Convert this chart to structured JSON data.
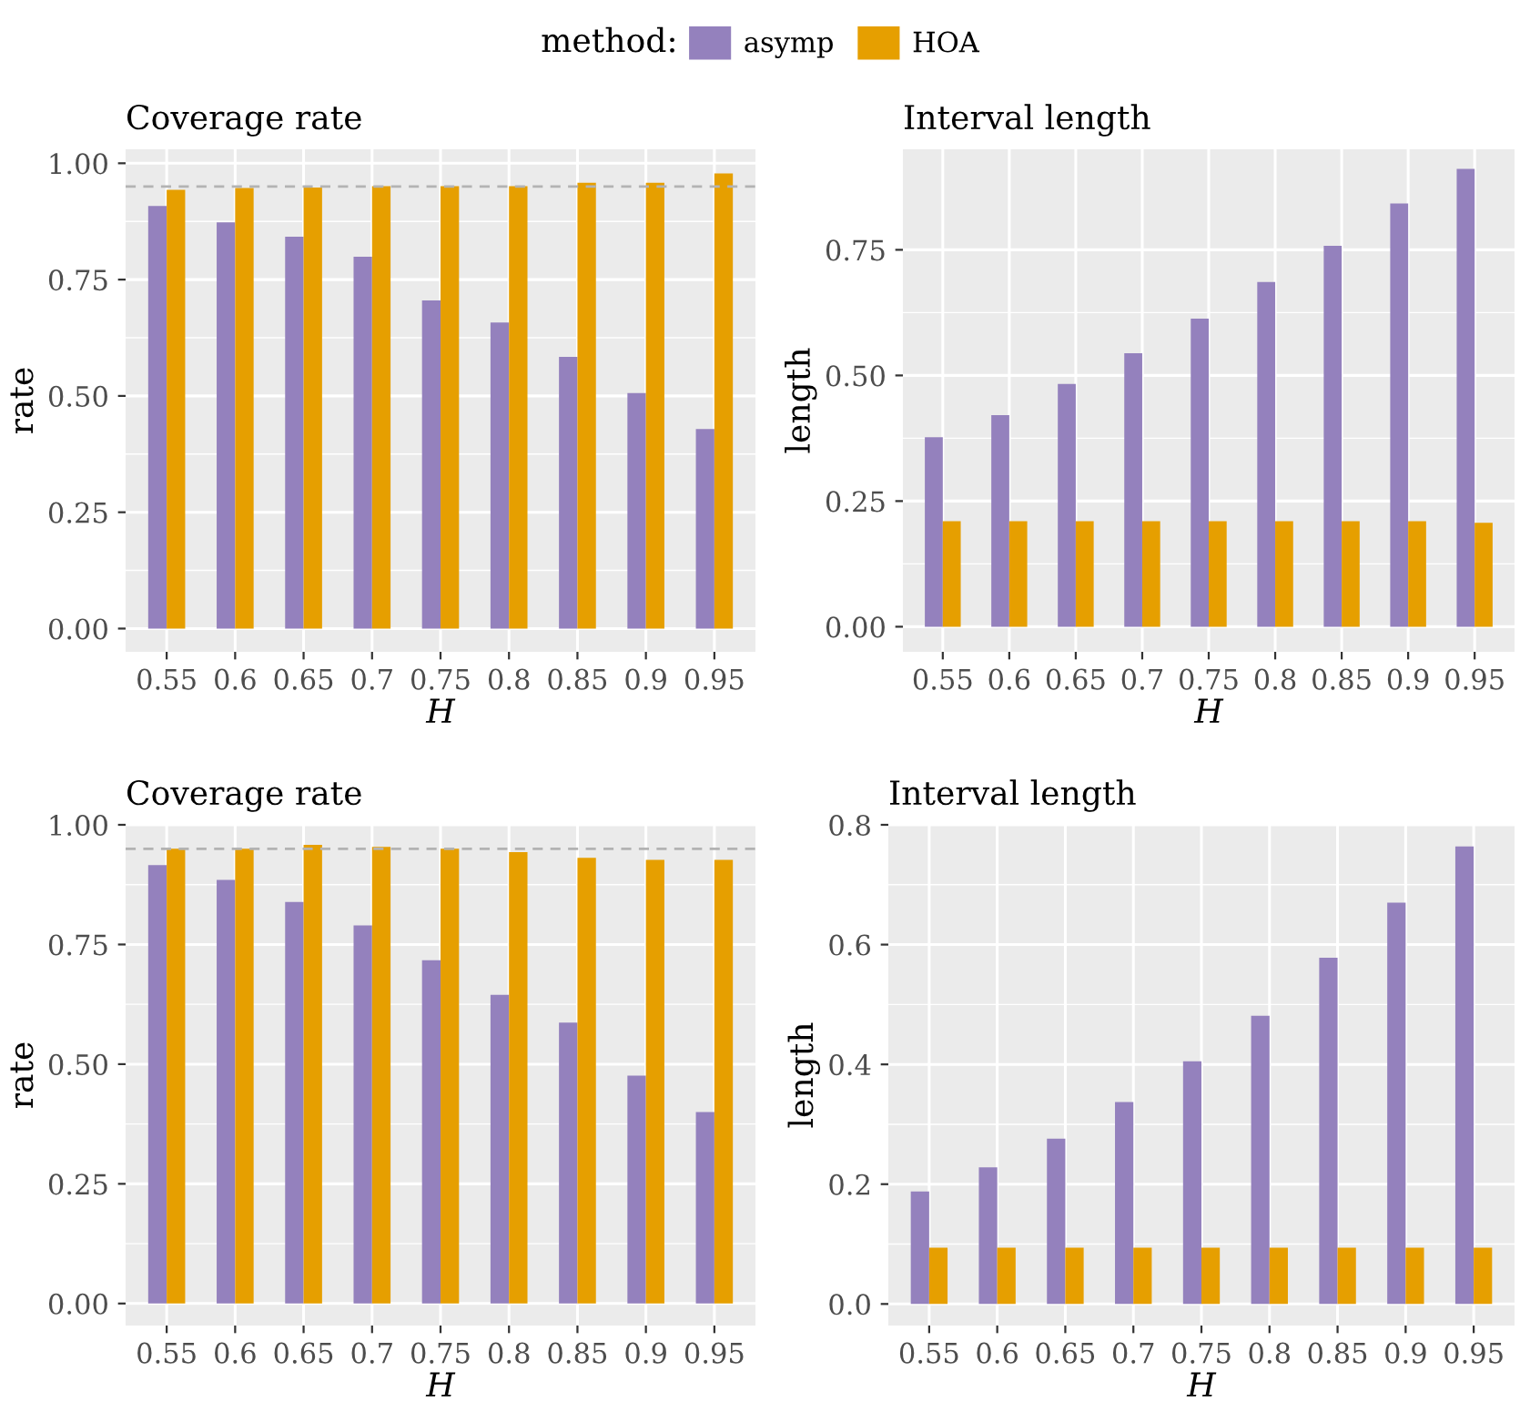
{
  "chart_data": [
    {
      "type": "bar",
      "title": "Coverage rate",
      "xlabel": "H",
      "ylabel": "rate",
      "legend_title": "method:",
      "legend": "top",
      "grid": true,
      "categories": [
        "0.55",
        "0.6",
        "0.65",
        "0.7",
        "0.75",
        "0.8",
        "0.85",
        "0.9",
        "0.95"
      ],
      "series": [
        {
          "name": "asymp",
          "color": "#9481bd",
          "values": [
            0.908,
            0.873,
            0.842,
            0.799,
            0.705,
            0.658,
            0.584,
            0.506,
            0.429
          ]
        },
        {
          "name": "HOA",
          "color": "#e69f00",
          "values": [
            0.943,
            0.947,
            0.948,
            0.951,
            0.951,
            0.951,
            0.958,
            0.958,
            0.978
          ]
        }
      ],
      "ylim": [
        -0.05,
        1.03
      ],
      "yticks": [
        {
          "value": 0,
          "label": "0.00"
        },
        0.25,
        {
          "value": 0.5,
          "label": "0.50"
        },
        0.75,
        {
          "value": 1,
          "label": "1.00"
        }
      ],
      "ref_lines": [
        {
          "axis": "y",
          "value": 0.95,
          "color": "#b3b3b3",
          "line_style": "dashed"
        }
      ]
    },
    {
      "type": "bar",
      "title": "Interval length",
      "xlabel": "H",
      "ylabel": "length",
      "grid": true,
      "categories": [
        "0.55",
        "0.6",
        "0.65",
        "0.7",
        "0.75",
        "0.8",
        "0.85",
        "0.9",
        "0.95"
      ],
      "series": [
        {
          "color": "#9481bd",
          "values": [
            0.377,
            0.421,
            0.483,
            0.544,
            0.613,
            0.686,
            0.758,
            0.842,
            0.911
          ]
        },
        {
          "color": "#e69f00",
          "values": [
            0.21,
            0.21,
            0.21,
            0.21,
            0.21,
            0.21,
            0.21,
            0.21,
            0.207
          ]
        }
      ],
      "ylim": [
        -0.05,
        0.95
      ],
      "yticks": [
        {
          "value": 0,
          "label": "0.00"
        },
        0.25,
        {
          "value": 0.5,
          "label": "0.50"
        },
        0.75
      ]
    },
    {
      "type": "bar",
      "title": "Coverage rate",
      "xlabel": "H",
      "ylabel": "rate",
      "grid": true,
      "categories": [
        "0.55",
        "0.6",
        "0.65",
        "0.7",
        "0.75",
        "0.8",
        "0.85",
        "0.9",
        "0.95"
      ],
      "series": [
        {
          "color": "#9481bd",
          "values": [
            0.916,
            0.885,
            0.839,
            0.79,
            0.717,
            0.645,
            0.587,
            0.476,
            0.4
          ]
        },
        {
          "color": "#e69f00",
          "values": [
            0.95,
            0.95,
            0.958,
            0.954,
            0.95,
            0.943,
            0.931,
            0.927,
            0.927
          ]
        }
      ],
      "ylim": [
        -0.046,
        1.0
      ],
      "yticks": [
        {
          "value": 0,
          "label": "0.00"
        },
        0.25,
        {
          "value": 0.5,
          "label": "0.50"
        },
        0.75,
        {
          "value": 1,
          "label": "1.00"
        }
      ],
      "ref_lines": [
        {
          "axis": "y",
          "value": 0.95,
          "color": "#b3b3b3",
          "line_style": "dashed"
        }
      ]
    },
    {
      "type": "bar",
      "title": "Interval length",
      "xlabel": "H",
      "ylabel": "length",
      "grid": true,
      "categories": [
        "0.55",
        "0.6",
        "0.65",
        "0.7",
        "0.75",
        "0.8",
        "0.85",
        "0.9",
        "0.95"
      ],
      "series": [
        {
          "color": "#9481bd",
          "values": [
            0.188,
            0.228,
            0.276,
            0.337,
            0.405,
            0.481,
            0.578,
            0.67,
            0.764
          ]
        },
        {
          "color": "#e69f00",
          "values": [
            0.094,
            0.094,
            0.094,
            0.094,
            0.094,
            0.094,
            0.094,
            0.094,
            0.094
          ]
        }
      ],
      "ylim": [
        -0.036,
        0.8
      ],
      "yticks": [
        {
          "value": 0,
          "label": "0.0"
        },
        0.2,
        0.4,
        0.6,
        0.8
      ]
    }
  ]
}
